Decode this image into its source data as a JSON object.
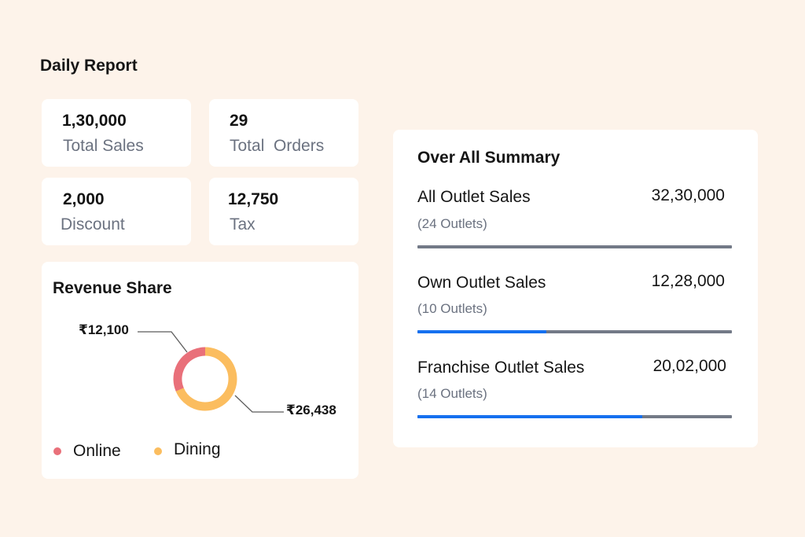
{
  "title": "Daily Report",
  "stats": [
    {
      "value": "1,30,000",
      "label": "Total Sales"
    },
    {
      "value": "29",
      "label": "Total  Orders"
    },
    {
      "value": "2,000",
      "label": "Discount"
    },
    {
      "value": "12,750",
      "label": "Tax"
    }
  ],
  "revenue": {
    "title": "Revenue Share",
    "segments": [
      {
        "name": "Online",
        "label": "₹12,100",
        "value": 12100,
        "color": "#e9707a"
      },
      {
        "name": "Dining",
        "label": "₹26,438",
        "value": 26438,
        "color": "#fbbd5f"
      }
    ]
  },
  "summary": {
    "title": "Over All Summary",
    "rows": [
      {
        "label": "All Outlet Sales",
        "value": "32,30,000",
        "sub": "(24 Outlets)",
        "fill_fraction": 0
      },
      {
        "label": "Own Outlet Sales",
        "value": "12,28,000",
        "sub": "(10 Outlets)",
        "fill_fraction": 0.41
      },
      {
        "label": "Franchise Outlet Sales",
        "value": "20,02,000",
        "sub": "(14 Outlets)",
        "fill_fraction": 0.715
      }
    ],
    "colors": {
      "track": "#737a87",
      "fill": "#1570ef"
    }
  }
}
